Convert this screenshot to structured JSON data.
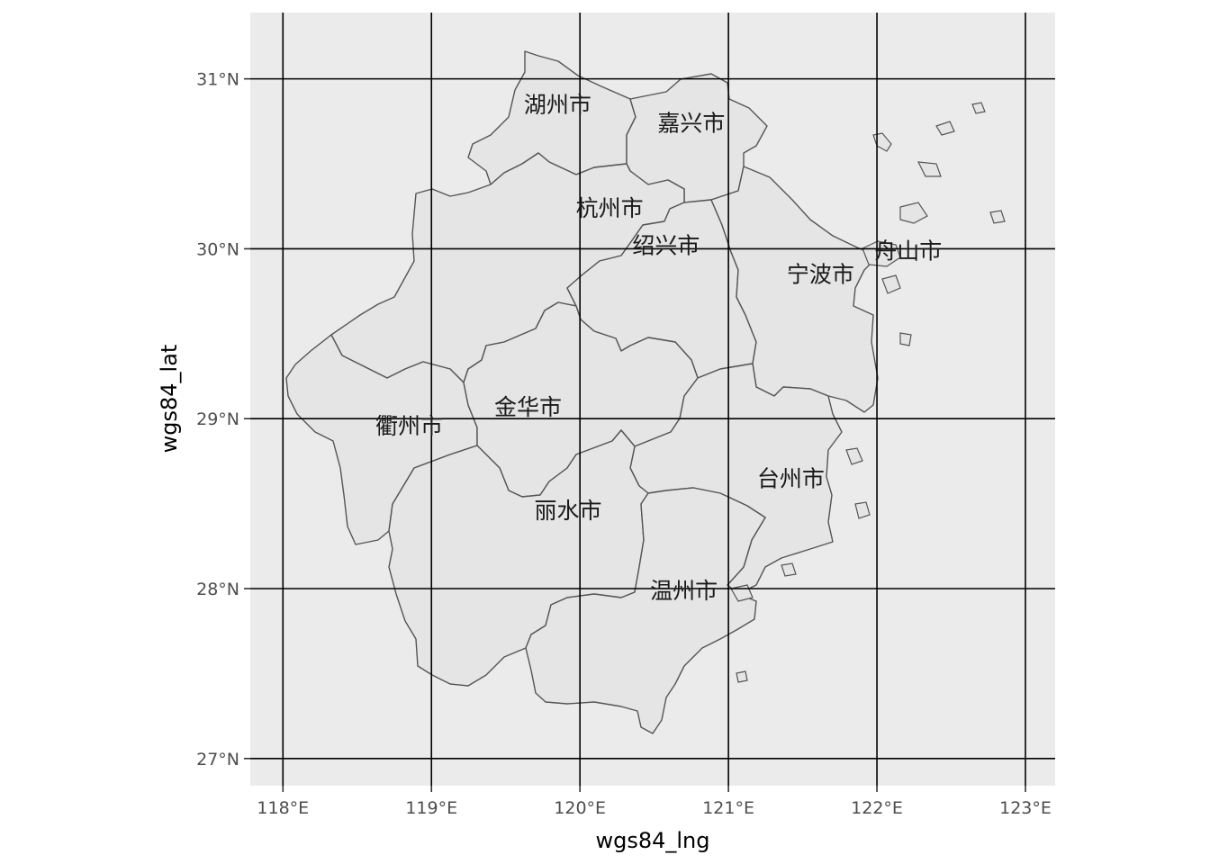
{
  "map": {
    "x_axis_title": "wgs84_lng",
    "y_axis_title": "wgs84_lat",
    "panel_background": "#ebebeb",
    "grid_color": "#000000",
    "region_fill": "#e5e5e5",
    "region_stroke": "#555555",
    "x_ticks": [
      {
        "value": 118,
        "label": "118°E"
      },
      {
        "value": 119,
        "label": "119°E"
      },
      {
        "value": 120,
        "label": "120°E"
      },
      {
        "value": 121,
        "label": "121°E"
      },
      {
        "value": 122,
        "label": "122°E"
      },
      {
        "value": 123,
        "label": "123°E"
      }
    ],
    "y_ticks": [
      {
        "value": 27,
        "label": "27°N"
      },
      {
        "value": 28,
        "label": "28°N"
      },
      {
        "value": 29,
        "label": "29°N"
      },
      {
        "value": 30,
        "label": "30°N"
      },
      {
        "value": 31,
        "label": "31°N"
      }
    ],
    "lng_range": [
      117.78,
      123.2
    ],
    "lat_range": [
      26.84,
      31.39
    ],
    "cities": [
      {
        "name": "湖州市",
        "lng": 119.85,
        "lat": 30.85
      },
      {
        "name": "嘉兴市",
        "lng": 120.75,
        "lat": 30.74
      },
      {
        "name": "杭州市",
        "lng": 120.2,
        "lat": 30.24
      },
      {
        "name": "绍兴市",
        "lng": 120.58,
        "lat": 30.02
      },
      {
        "name": "宁波市",
        "lng": 121.62,
        "lat": 29.85
      },
      {
        "name": "舟山市",
        "lng": 122.21,
        "lat": 29.99
      },
      {
        "name": "衢州市",
        "lng": 118.85,
        "lat": 28.96
      },
      {
        "name": "金华市",
        "lng": 119.65,
        "lat": 29.07
      },
      {
        "name": "台州市",
        "lng": 121.42,
        "lat": 28.65
      },
      {
        "name": "丽水市",
        "lng": 119.92,
        "lat": 28.46
      },
      {
        "name": "温州市",
        "lng": 120.7,
        "lat": 27.99
      }
    ]
  }
}
